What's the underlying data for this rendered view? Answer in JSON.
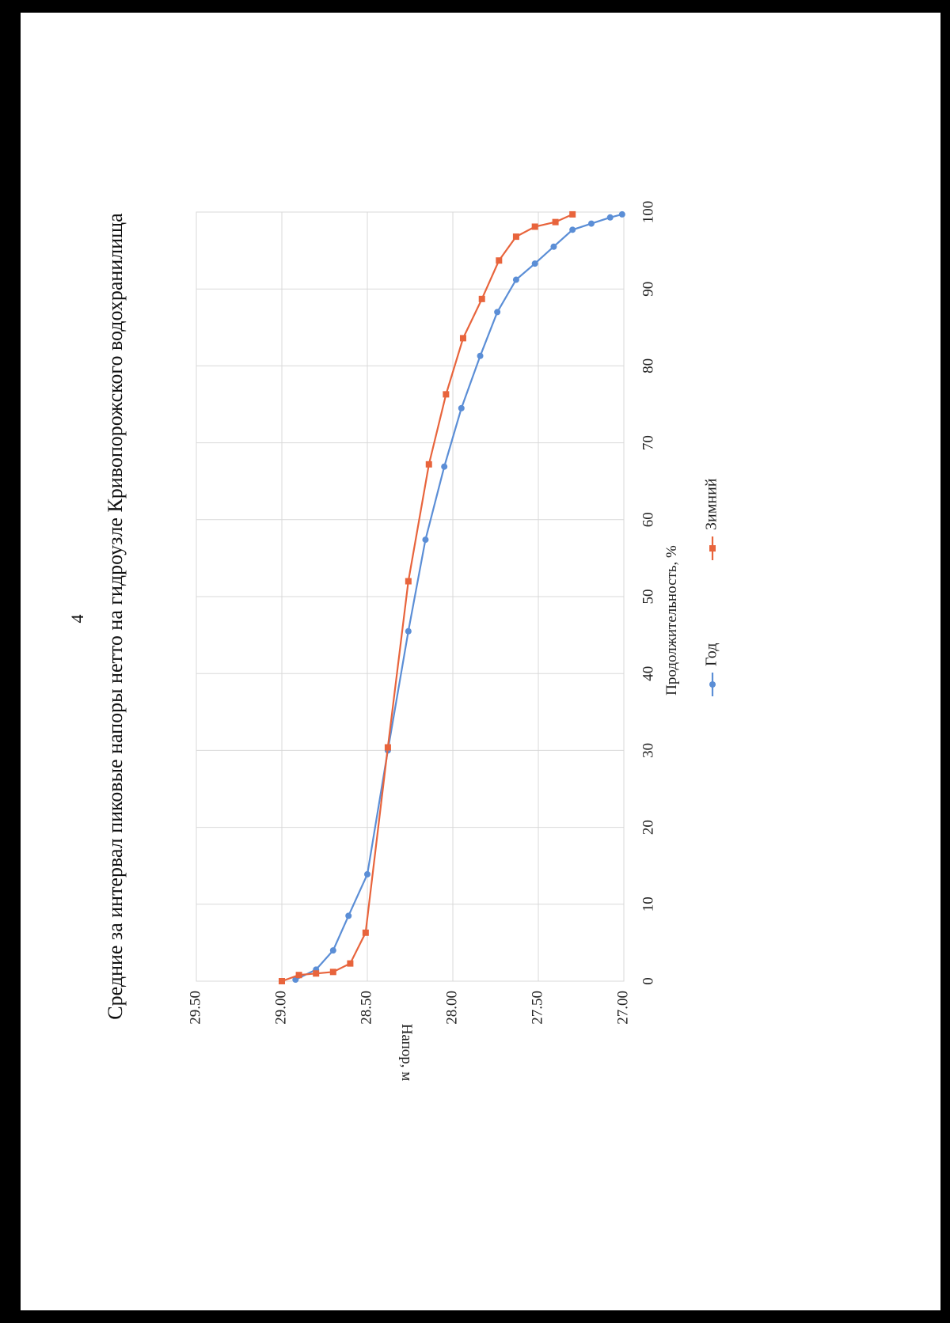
{
  "page": {
    "page_number": "4"
  },
  "chart_data": {
    "type": "line",
    "title": "Средние за интервал пиковые напоры нетто на гидроузле Кривопорожского водохранилища",
    "xlabel": "Продолжительность, %",
    "ylabel": "Напор, м",
    "xlim": [
      0,
      100
    ],
    "ylim": [
      27.0,
      29.5
    ],
    "x_ticks": [
      "0",
      "10",
      "20",
      "30",
      "40",
      "50",
      "60",
      "70",
      "80",
      "90",
      "100"
    ],
    "y_ticks": [
      "27.00",
      "27.50",
      "28.00",
      "28.50",
      "29.00",
      "29.50"
    ],
    "grid": true,
    "legend_position": "bottom",
    "series": [
      {
        "name": "Год",
        "color": "#5b8ed6",
        "marker": "circle",
        "points": [
          [
            0.2,
            28.92
          ],
          [
            1.5,
            28.8
          ],
          [
            4.0,
            28.7
          ],
          [
            8.5,
            28.61
          ],
          [
            13.9,
            28.5
          ],
          [
            30.0,
            28.38
          ],
          [
            45.5,
            28.26
          ],
          [
            57.4,
            28.16
          ],
          [
            66.9,
            28.05
          ],
          [
            74.5,
            27.95
          ],
          [
            81.3,
            27.84
          ],
          [
            87.0,
            27.74
          ],
          [
            91.2,
            27.63
          ],
          [
            93.3,
            27.52
          ],
          [
            95.5,
            27.41
          ],
          [
            97.7,
            27.3
          ],
          [
            98.5,
            27.19
          ],
          [
            99.3,
            27.08
          ],
          [
            99.7,
            27.01
          ]
        ]
      },
      {
        "name": "Зимний",
        "color": "#e8643c",
        "marker": "square",
        "points": [
          [
            0.0,
            29.0
          ],
          [
            0.8,
            28.9
          ],
          [
            1.0,
            28.8
          ],
          [
            1.2,
            28.7
          ],
          [
            2.3,
            28.6
          ],
          [
            6.3,
            28.51
          ],
          [
            30.4,
            28.38
          ],
          [
            52.0,
            28.26
          ],
          [
            67.2,
            28.14
          ],
          [
            76.3,
            28.04
          ],
          [
            83.6,
            27.94
          ],
          [
            88.7,
            27.83
          ],
          [
            93.7,
            27.73
          ],
          [
            96.8,
            27.63
          ],
          [
            98.1,
            27.52
          ],
          [
            98.7,
            27.4
          ],
          [
            99.7,
            27.3
          ]
        ]
      }
    ]
  }
}
